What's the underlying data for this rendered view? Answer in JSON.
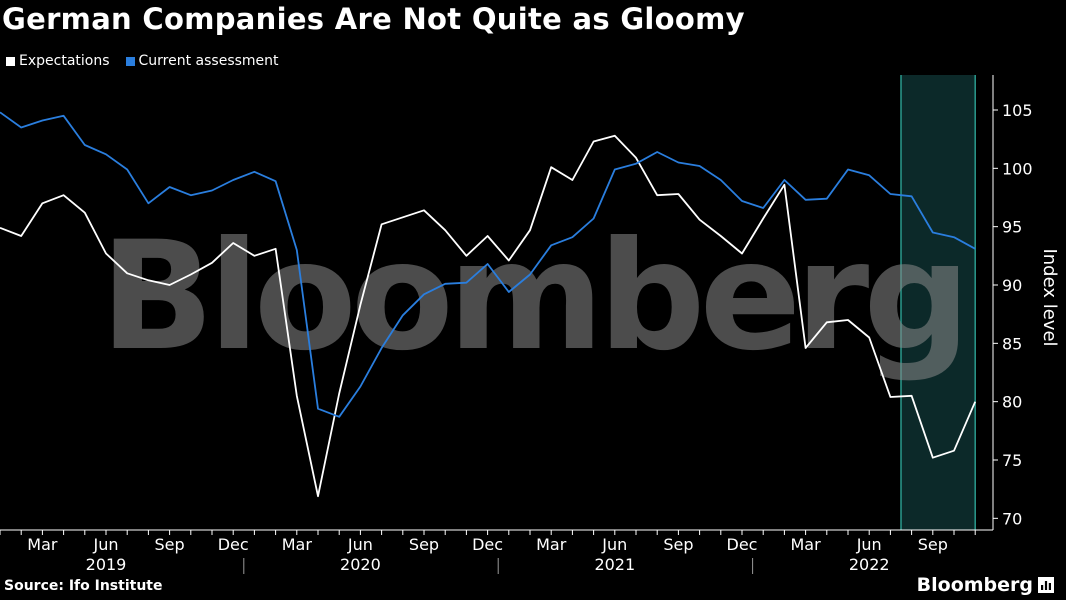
{
  "title": "German Companies Are Not Quite as Gloomy",
  "source": "Source: Ifo Institute",
  "brand": "Bloomberg",
  "watermark": "Bloomberg",
  "colors": {
    "background": "#000000",
    "expectations": "#ffffff",
    "current": "#2a7ede",
    "highlight_fill": "#0d2b2b",
    "highlight_stroke": "#2a9a8e"
  },
  "chart_data": {
    "type": "line",
    "ylabel": "Index level",
    "ylim": [
      69,
      108
    ],
    "yticks": [
      70,
      75,
      80,
      85,
      90,
      95,
      100,
      105
    ],
    "y_axis_side": "right",
    "grid": false,
    "legend_position": "top-left",
    "x_start": "2019-01",
    "months": [
      "2019-01",
      "2019-02",
      "2019-03",
      "2019-04",
      "2019-05",
      "2019-06",
      "2019-07",
      "2019-08",
      "2019-09",
      "2019-10",
      "2019-11",
      "2019-12",
      "2020-01",
      "2020-02",
      "2020-03",
      "2020-04",
      "2020-05",
      "2020-06",
      "2020-07",
      "2020-08",
      "2020-09",
      "2020-10",
      "2020-11",
      "2020-12",
      "2021-01",
      "2021-02",
      "2021-03",
      "2021-04",
      "2021-05",
      "2021-06",
      "2021-07",
      "2021-08",
      "2021-09",
      "2021-10",
      "2021-11",
      "2021-12",
      "2022-01",
      "2022-02",
      "2022-03",
      "2022-04",
      "2022-05",
      "2022-06",
      "2022-07",
      "2022-08",
      "2022-09",
      "2022-10",
      "2022-11"
    ],
    "month_ticks": [
      {
        "label": "Mar",
        "month": "2019-03"
      },
      {
        "label": "Jun",
        "month": "2019-06"
      },
      {
        "label": "Sep",
        "month": "2019-09"
      },
      {
        "label": "Dec",
        "month": "2019-12"
      },
      {
        "label": "Mar",
        "month": "2020-03"
      },
      {
        "label": "Jun",
        "month": "2020-06"
      },
      {
        "label": "Sep",
        "month": "2020-09"
      },
      {
        "label": "Dec",
        "month": "2020-12"
      },
      {
        "label": "Mar",
        "month": "2021-03"
      },
      {
        "label": "Jun",
        "month": "2021-06"
      },
      {
        "label": "Sep",
        "month": "2021-09"
      },
      {
        "label": "Dec",
        "month": "2021-12"
      },
      {
        "label": "Mar",
        "month": "2022-03"
      },
      {
        "label": "Jun",
        "month": "2022-06"
      },
      {
        "label": "Sep",
        "month": "2022-09"
      }
    ],
    "year_labels": [
      {
        "label": "2019",
        "month": "2019-06"
      },
      {
        "label": "2020",
        "month": "2020-06"
      },
      {
        "label": "2021",
        "month": "2021-06"
      },
      {
        "label": "2022",
        "month": "2022-06"
      }
    ],
    "highlight_range": [
      "2022-08",
      "2022-11"
    ],
    "series": [
      {
        "name": "Expectations",
        "values": [
          94.9,
          94.2,
          97.0,
          97.7,
          96.2,
          92.7,
          91.0,
          90.4,
          90.0,
          90.9,
          91.9,
          93.6,
          92.5,
          93.1,
          80.5,
          71.9,
          80.7,
          88.3,
          95.2,
          95.8,
          96.4,
          94.7,
          92.5,
          94.2,
          92.1,
          94.7,
          100.1,
          99.0,
          102.3,
          102.8,
          100.9,
          97.7,
          97.8,
          95.6,
          94.2,
          92.7,
          95.7,
          98.6,
          84.6,
          86.8,
          87.0,
          85.5,
          80.4,
          80.5,
          75.2,
          75.8,
          80.0
        ]
      },
      {
        "name": "Current assessment",
        "values": [
          104.8,
          103.5,
          104.1,
          104.5,
          102.0,
          101.2,
          99.9,
          97.0,
          98.4,
          97.7,
          98.1,
          99.0,
          99.7,
          98.9,
          93.0,
          79.4,
          78.7,
          81.3,
          84.6,
          87.4,
          89.2,
          90.1,
          90.2,
          91.8,
          89.4,
          90.9,
          93.4,
          94.1,
          95.7,
          99.9,
          100.4,
          101.4,
          100.5,
          100.2,
          99.0,
          97.2,
          96.6,
          99.0,
          97.3,
          97.4,
          99.9,
          99.4,
          97.8,
          97.6,
          94.5,
          94.1,
          93.1
        ]
      }
    ]
  }
}
